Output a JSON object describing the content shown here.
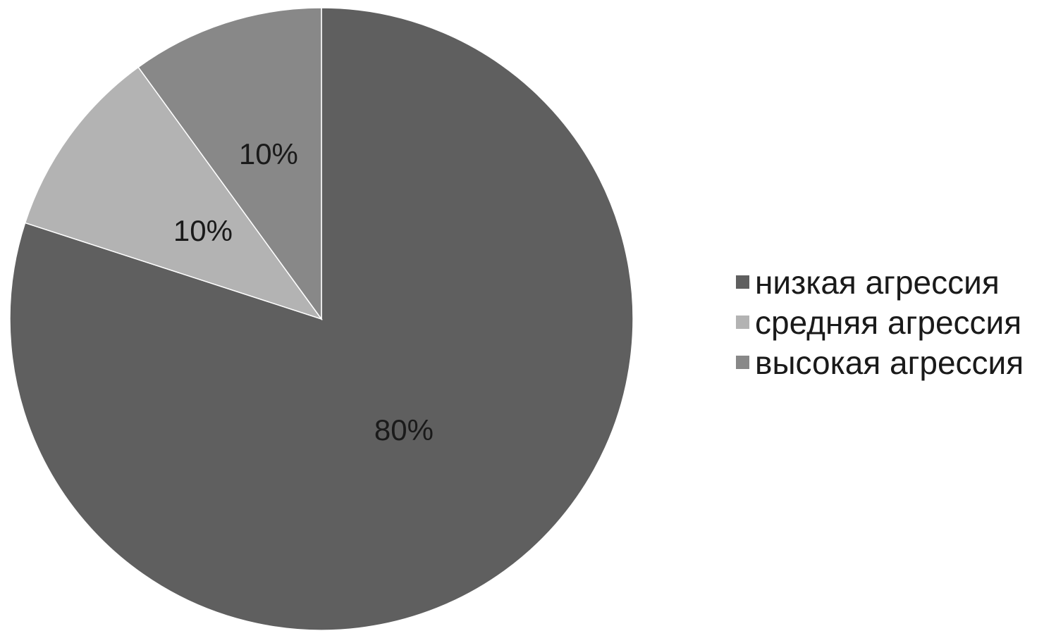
{
  "chart_data": {
    "type": "pie",
    "title": "",
    "slices": [
      {
        "label": "низкая агрессия",
        "value": 80,
        "value_label": "80%",
        "color": "#5f5f5f"
      },
      {
        "label": "средняя агрессия",
        "value": 10,
        "value_label": "10%",
        "color": "#b3b3b3"
      },
      {
        "label": "высокая агрессия",
        "value": 10,
        "value_label": "10%",
        "color": "#888888"
      }
    ],
    "start": "12 o'clock",
    "direction": "clockwise",
    "legend_position": "right"
  }
}
